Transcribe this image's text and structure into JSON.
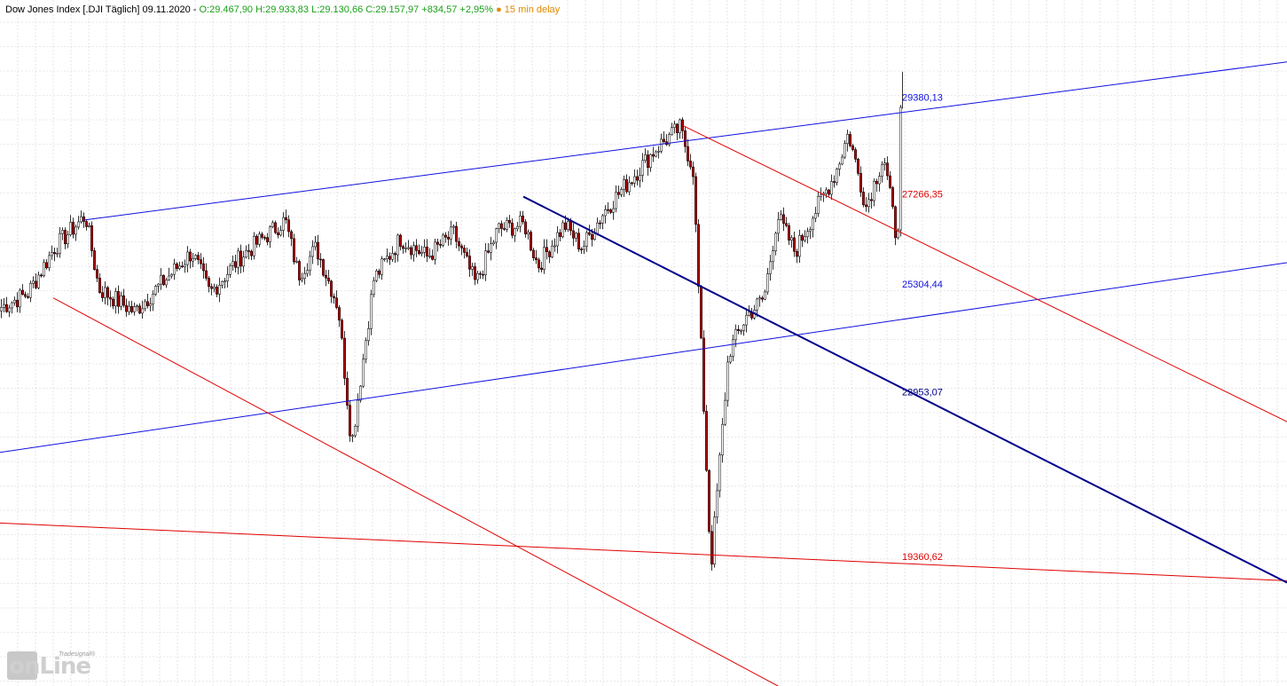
{
  "header": {
    "name": "Dow Jones Index [.DJI Täglich] 09.11.2020 -",
    "ohlc": "O:29.467,90 H:29.933,83 L:29.130,66 C:29.157,97",
    "change": "+834,57 +2,95%",
    "dot": "●",
    "delay": "15 min delay"
  },
  "logo": {
    "word": "onLine",
    "small": "Tradesignal®"
  },
  "colors": {
    "up": "#ffffff",
    "down": "#b00000",
    "wick": "#000000",
    "grid": "#d4d4d4",
    "blue": "#1010e0",
    "red": "#e00000",
    "navy": "#00008b"
  },
  "chart_data": {
    "type": "candlestick",
    "title": "Dow Jones Index [.DJI Täglich]",
    "grid": true,
    "levels": [
      {
        "label": "29380,13",
        "value": 29380.13,
        "color": "#1010e0"
      },
      {
        "label": "27266,35",
        "value": 27266.35,
        "color": "#e00000"
      },
      {
        "label": "25304,44",
        "value": 25304.44,
        "color": "#1010e0"
      },
      {
        "label": "22953,07",
        "value": 22953.07,
        "color": "#00008b"
      },
      {
        "label": "19360,62",
        "value": 19360.62,
        "color": "#e00000"
      }
    ],
    "close_path": [
      [
        0,
        24800
      ],
      [
        30,
        25100
      ],
      [
        60,
        26100
      ],
      [
        95,
        26800
      ],
      [
        110,
        25200
      ],
      [
        150,
        24700
      ],
      [
        180,
        25300
      ],
      [
        215,
        26000
      ],
      [
        235,
        25100
      ],
      [
        270,
        25900
      ],
      [
        320,
        26700
      ],
      [
        335,
        25500
      ],
      [
        355,
        26100
      ],
      [
        380,
        24800
      ],
      [
        395,
        21800
      ],
      [
        420,
        25400
      ],
      [
        450,
        26300
      ],
      [
        480,
        25900
      ],
      [
        510,
        26400
      ],
      [
        535,
        25300
      ],
      [
        560,
        26500
      ],
      [
        590,
        26600
      ],
      [
        605,
        25700
      ],
      [
        635,
        26600
      ],
      [
        655,
        26100
      ],
      [
        680,
        26900
      ],
      [
        710,
        27600
      ],
      [
        740,
        28300
      ],
      [
        765,
        28700
      ],
      [
        780,
        27800
      ],
      [
        790,
        23500
      ],
      [
        800,
        19100
      ],
      [
        820,
        23800
      ],
      [
        840,
        24600
      ],
      [
        860,
        25000
      ],
      [
        875,
        26800
      ],
      [
        895,
        26000
      ],
      [
        915,
        26800
      ],
      [
        940,
        27700
      ],
      [
        955,
        28600
      ],
      [
        975,
        27000
      ],
      [
        995,
        28100
      ],
      [
        1010,
        26200
      ],
      [
        1016,
        29158
      ]
    ],
    "trendlines": [
      {
        "color": "#1010e0",
        "points": [
          [
            95,
            26700
          ],
          [
            1451,
            30150
          ]
        ]
      },
      {
        "color": "#1010e0",
        "points": [
          [
            0,
            21630
          ],
          [
            1451,
            25770
          ]
        ]
      },
      {
        "color": "#e00000",
        "points": [
          [
            770,
            28760
          ],
          [
            1451,
            22300
          ]
        ]
      },
      {
        "color": "#e00000",
        "points": [
          [
            60,
            25000
          ],
          [
            945,
            15830
          ]
        ]
      },
      {
        "color": "#e00000",
        "points": [
          [
            0,
            20090
          ],
          [
            1451,
            18830
          ]
        ]
      },
      {
        "color": "#00008b",
        "points": [
          [
            590,
            27210
          ],
          [
            1451,
            18790
          ]
        ]
      }
    ]
  }
}
